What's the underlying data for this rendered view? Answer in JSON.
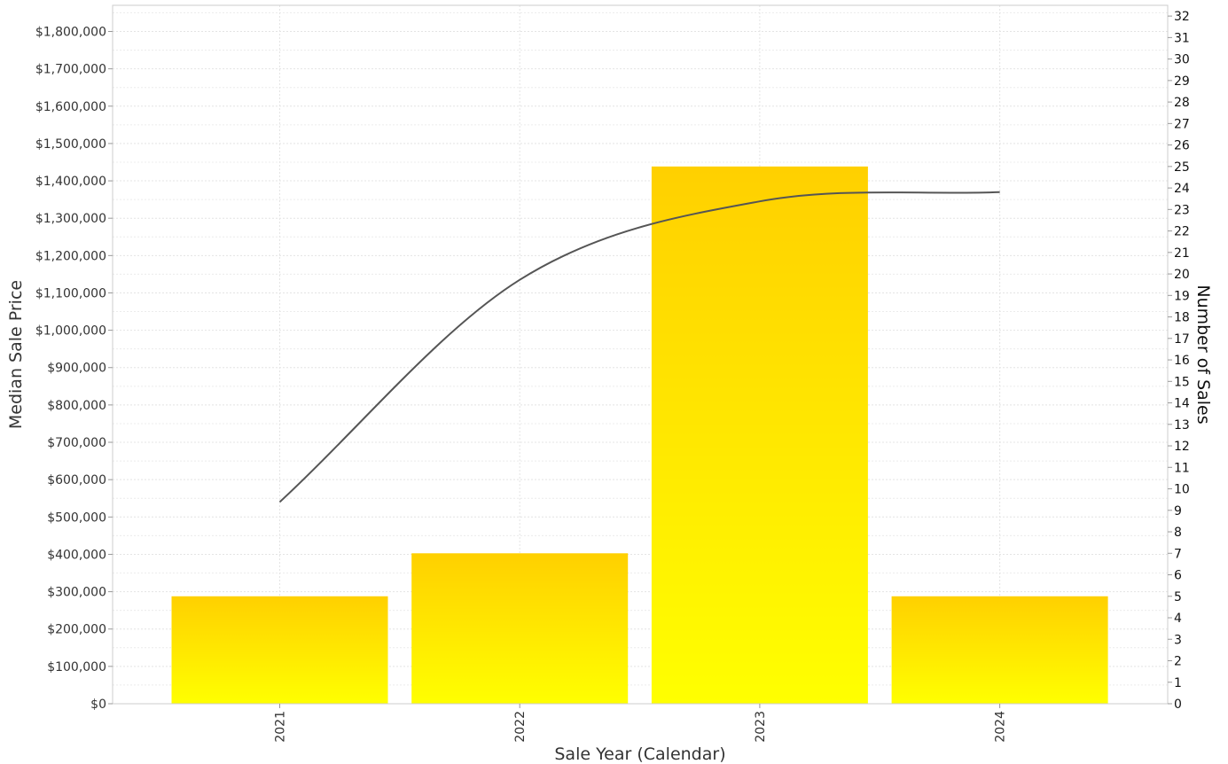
{
  "chart_data": {
    "type": "bar",
    "title": "",
    "xlabel": "Sale Year (Calendar)",
    "ylabel": "Median Sale Price",
    "y2label": "Number of Sales",
    "categories": [
      "2021",
      "2022",
      "2023",
      "2024"
    ],
    "ylim": [
      0,
      1870000
    ],
    "y2lim": [
      0,
      32.5
    ],
    "yticks": [
      0,
      100000,
      200000,
      300000,
      400000,
      500000,
      600000,
      700000,
      800000,
      900000,
      1000000,
      1100000,
      1200000,
      1300000,
      1400000,
      1500000,
      1600000,
      1700000,
      1800000
    ],
    "ytick_labels": [
      "$0",
      "$100,000",
      "$200,000",
      "$300,000",
      "$400,000",
      "$500,000",
      "$600,000",
      "$700,000",
      "$800,000",
      "$900,000",
      "$1,000,000",
      "$1,100,000",
      "$1,200,000",
      "$1,300,000",
      "$1,400,000",
      "$1,500,000",
      "$1,600,000",
      "$1,700,000",
      "$1,800,000"
    ],
    "y2ticks": [
      0,
      1,
      2,
      3,
      4,
      5,
      6,
      7,
      8,
      9,
      10,
      11,
      12,
      13,
      14,
      15,
      16,
      17,
      18,
      19,
      20,
      21,
      22,
      23,
      24,
      25,
      26,
      27,
      28,
      29,
      30,
      31,
      32
    ],
    "y2tick_labels": [
      "0",
      "1",
      "2",
      "3",
      "4",
      "5",
      "6",
      "7",
      "8",
      "9",
      "10",
      "11",
      "12",
      "13",
      "14",
      "15",
      "16",
      "17",
      "18",
      "19",
      "20",
      "21",
      "22",
      "23",
      "24",
      "25",
      "26",
      "27",
      "28",
      "29",
      "30",
      "31",
      "32"
    ],
    "grid": true,
    "series": [
      {
        "type": "bar",
        "axis": "right",
        "values": [
          5,
          7,
          25,
          5
        ],
        "color_top": "#ffd000",
        "color_bottom": "#ffff00"
      },
      {
        "type": "line",
        "axis": "left",
        "smooth": true,
        "values": [
          540000,
          1135000,
          1345000,
          1370000
        ],
        "color": "#555555"
      }
    ]
  }
}
